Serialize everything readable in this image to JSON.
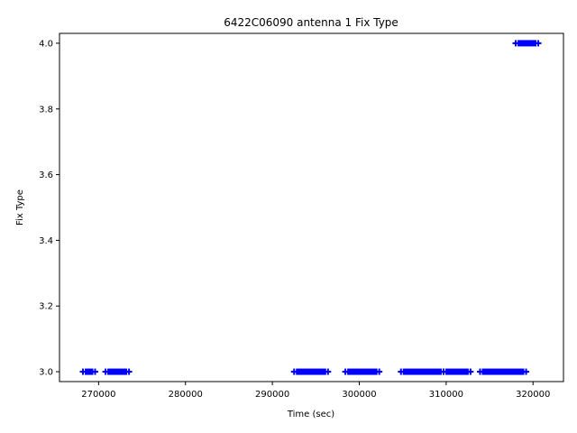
{
  "chart_data": {
    "type": "scatter",
    "title": "6422C06090 antenna 1 Fix Type",
    "xlabel": "Time (sec)",
    "ylabel": "Fix Type",
    "xlim": [
      265500,
      323500
    ],
    "ylim": [
      2.97,
      4.03
    ],
    "x_ticks": [
      270000,
      280000,
      290000,
      300000,
      310000,
      320000
    ],
    "x_tick_labels": [
      "270000",
      "280000",
      "290000",
      "300000",
      "310000",
      "320000"
    ],
    "y_ticks": [
      3.0,
      3.2,
      3.4,
      3.6,
      3.8,
      4.0
    ],
    "y_tick_labels": [
      "3.0",
      "3.2",
      "3.4",
      "3.6",
      "3.8",
      "4.0"
    ],
    "grid": false,
    "marker": "+",
    "color": "#0000ff",
    "segments": [
      {
        "x_start": 268200,
        "x_end": 269600,
        "y": 3.0
      },
      {
        "x_start": 270800,
        "x_end": 273500,
        "y": 3.0
      },
      {
        "x_start": 292500,
        "x_end": 296400,
        "y": 3.0
      },
      {
        "x_start": 298400,
        "x_end": 302300,
        "y": 3.0
      },
      {
        "x_start": 304800,
        "x_end": 309700,
        "y": 3.0
      },
      {
        "x_start": 309700,
        "x_end": 312800,
        "y": 3.0
      },
      {
        "x_start": 313900,
        "x_end": 319200,
        "y": 3.0
      },
      {
        "x_start": 318000,
        "x_end": 320600,
        "y": 4.0
      }
    ]
  }
}
